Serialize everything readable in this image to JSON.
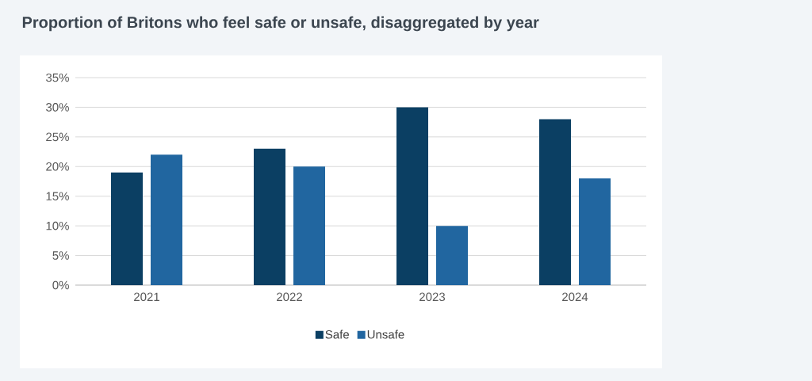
{
  "chart_data": {
    "type": "bar",
    "title": "Proportion of Britons who feel safe or unsafe, disaggregated by year",
    "categories": [
      "2021",
      "2022",
      "2023",
      "2024"
    ],
    "series": [
      {
        "name": "Safe",
        "color": "#0b3f63",
        "values": [
          19,
          23,
          30,
          28
        ]
      },
      {
        "name": "Unsafe",
        "color": "#2166a0",
        "values": [
          22,
          20,
          10,
          18
        ]
      }
    ],
    "ylim": [
      0,
      35
    ],
    "yticks": [
      {
        "value": 0,
        "label": "0%"
      },
      {
        "value": 5,
        "label": "5%"
      },
      {
        "value": 10,
        "label": "10%"
      },
      {
        "value": 15,
        "label": "15%"
      },
      {
        "value": 20,
        "label": "20%"
      },
      {
        "value": 25,
        "label": "25%"
      },
      {
        "value": 30,
        "label": "30%"
      },
      {
        "value": 35,
        "label": "35%"
      }
    ],
    "grid": "y",
    "legend": "bottom"
  }
}
